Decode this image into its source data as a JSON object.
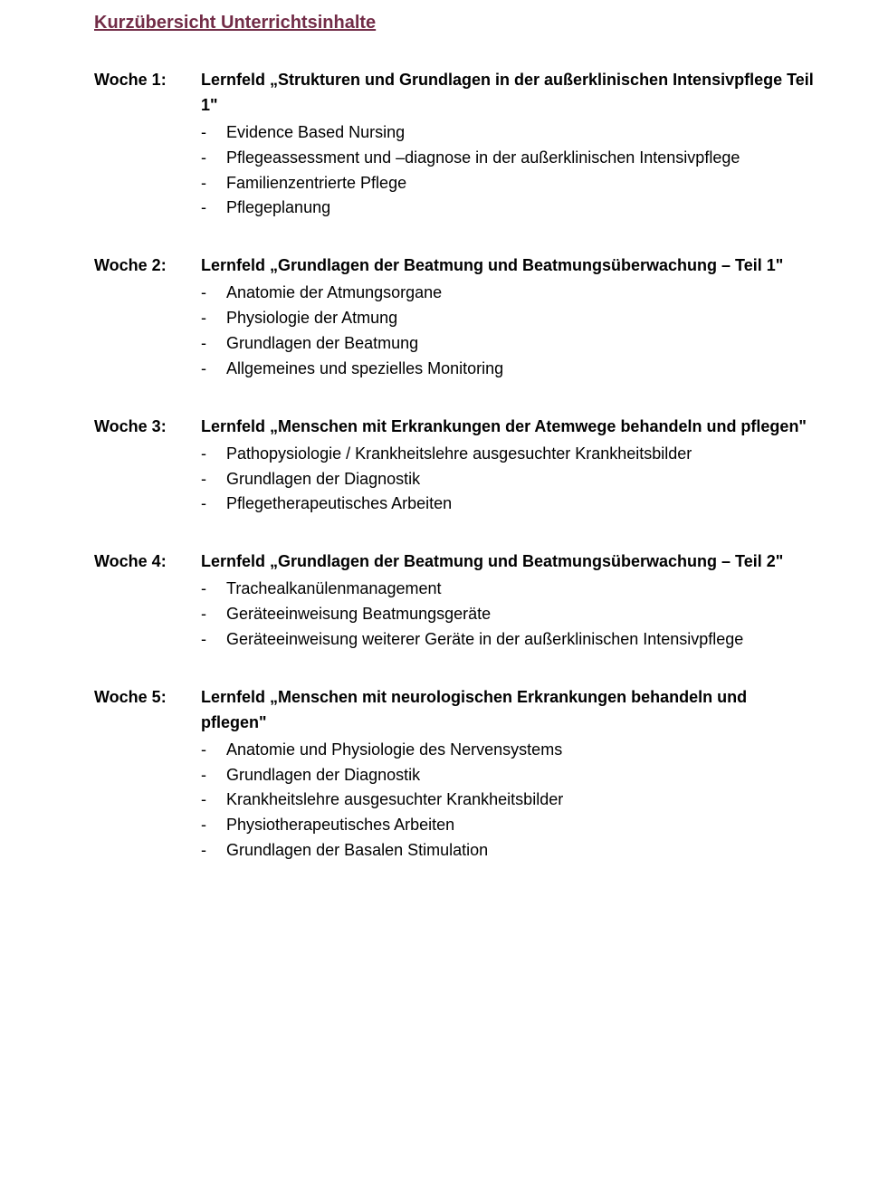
{
  "colors": {
    "title": "#722c47",
    "text": "#000000",
    "background": "#ffffff"
  },
  "typography": {
    "family": "Verdana",
    "title_fontsize_pt": 15,
    "body_fontsize_pt": 13.5,
    "title_weight": "bold",
    "lernfeld_weight": "bold"
  },
  "title": "Kurzübersicht Unterrichtsinhalte",
  "weeks": [
    {
      "label": "Woche 1:",
      "lernfeld": "Lernfeld „Strukturen und Grundlagen in der außerklinischen Intensivpflege Teil 1\"",
      "items": [
        "Evidence Based Nursing",
        "Pflegeassessment und –diagnose in der außerklinischen Intensivpflege",
        "Familienzentrierte Pflege",
        "Pflegeplanung"
      ]
    },
    {
      "label": "Woche 2:",
      "lernfeld": "Lernfeld „Grundlagen der Beatmung und Beatmungsüberwachung – Teil 1\"",
      "items": [
        "Anatomie der Atmungsorgane",
        "Physiologie der Atmung",
        "Grundlagen der Beatmung",
        "Allgemeines und spezielles Monitoring"
      ]
    },
    {
      "label": "Woche 3:",
      "lernfeld": "Lernfeld „Menschen mit Erkrankungen der Atemwege behandeln und pflegen\"",
      "items": [
        "Pathopysiologie / Krankheitslehre ausgesuchter Krankheitsbilder",
        "Grundlagen der Diagnostik",
        "Pflegetherapeutisches Arbeiten"
      ]
    },
    {
      "label": "Woche 4:",
      "lernfeld": "Lernfeld „Grundlagen der Beatmung und Beatmungsüberwachung – Teil 2\"",
      "items": [
        "Trachealkanülenmanagement",
        "Geräteeinweisung Beatmungsgeräte",
        "Geräteeinweisung weiterer Geräte in der außerklinischen Intensivpflege"
      ]
    },
    {
      "label": "Woche 5:",
      "lernfeld": "Lernfeld „Menschen mit neurologischen Erkrankungen behandeln und pflegen\"",
      "items": [
        "Anatomie und Physiologie des Nervensystems",
        "Grundlagen der Diagnostik",
        "Krankheitslehre ausgesuchter Krankheitsbilder",
        "Physiotherapeutisches Arbeiten",
        "Grundlagen der Basalen Stimulation"
      ]
    }
  ]
}
